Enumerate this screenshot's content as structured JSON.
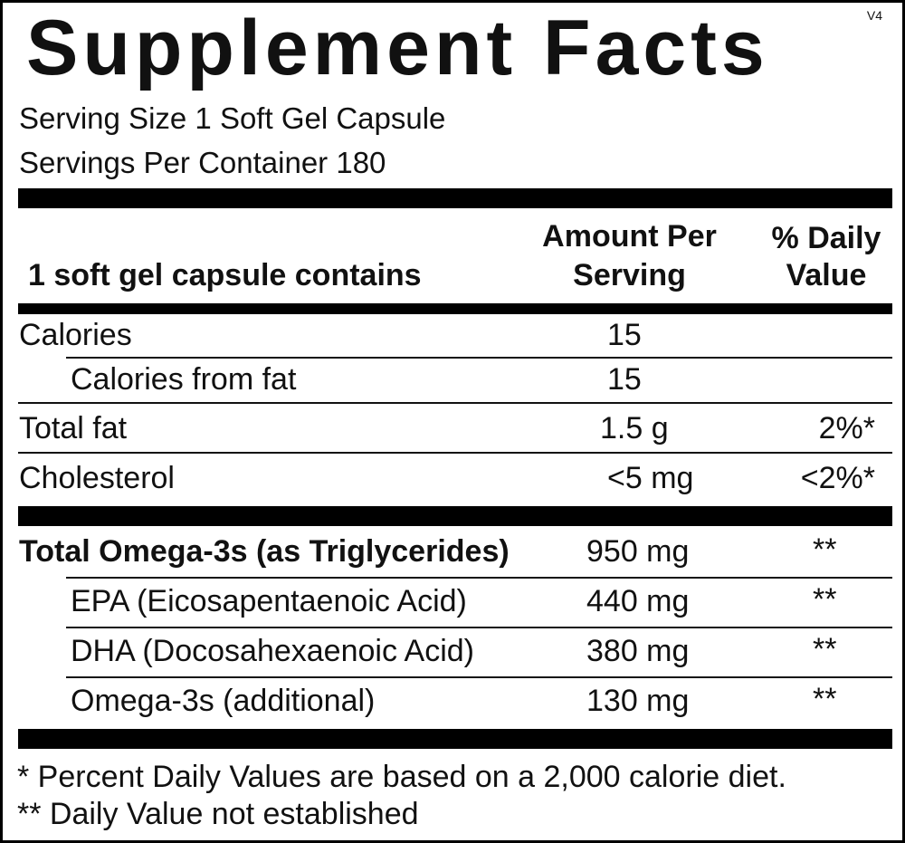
{
  "title": "Supplement Facts",
  "version": "V4",
  "serving_size": "Serving Size 1 Soft Gel Capsule",
  "servings_per_container": "Servings Per Container 180",
  "header": {
    "contains_label": "1 soft gel capsule contains",
    "amount_line1": "Amount Per",
    "amount_line2": "Serving",
    "dv_line1": "% Daily",
    "dv_line2": "Value"
  },
  "rows": [
    {
      "name": "Calories",
      "amount": "15",
      "dv": ""
    },
    {
      "name": "Calories from fat",
      "amount": "15",
      "dv": ""
    },
    {
      "name": "Total fat",
      "amount": "1.5 g",
      "dv": "2%*"
    },
    {
      "name": "Cholesterol",
      "amount": "<5 mg",
      "dv": "<2%*"
    },
    {
      "name": "Total Omega-3s (as Triglycerides)",
      "amount": "950 mg",
      "dv": "**"
    },
    {
      "name": "EPA (Eicosapentaenoic Acid)",
      "amount": "440 mg",
      "dv": "**"
    },
    {
      "name": "DHA (Docosahexaenoic Acid)",
      "amount": "380 mg",
      "dv": "**"
    },
    {
      "name": "Omega-3s (additional)",
      "amount": "130 mg",
      "dv": "**"
    }
  ],
  "footnotes": [
    "* Percent Daily Values are based on a 2,000 calorie diet.",
    "** Daily Value not established"
  ]
}
